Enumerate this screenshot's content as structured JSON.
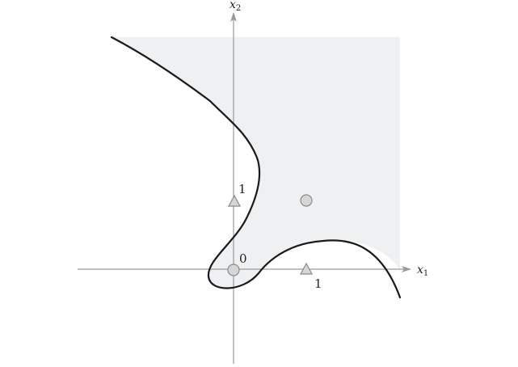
{
  "diagram": {
    "axes": {
      "x_label": "x",
      "x_subscript": "1",
      "y_label": "x",
      "y_subscript": "2"
    },
    "tick_labels": {
      "origin": "0",
      "x_one": "1",
      "y_one": "1"
    },
    "points": [
      {
        "name": "origin-point",
        "shape": "circle",
        "x": 0,
        "y": 0
      },
      {
        "name": "point-1-1",
        "shape": "circle",
        "x": 1,
        "y": 1
      },
      {
        "name": "point-1-0",
        "shape": "triangle",
        "x": 1,
        "y": 0
      },
      {
        "name": "point-0-1",
        "shape": "triangle",
        "x": 0,
        "y": 1
      }
    ],
    "colors": {
      "region_fill": "#eff0f2",
      "axis": "#999999",
      "curve": "#1a1a1a",
      "marker_fill": "#d6d6d6",
      "marker_stroke": "#8a8a8a"
    }
  }
}
